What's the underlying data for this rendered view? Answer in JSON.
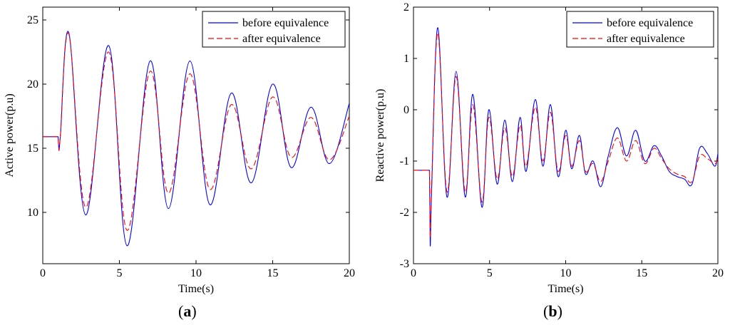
{
  "chart_data": [
    {
      "id": "a",
      "type": "line",
      "caption": "a",
      "xlabel": "Time(s)",
      "ylabel": "Active power(p.u)",
      "xlim": [
        0,
        20
      ],
      "ylim": [
        6,
        26
      ],
      "xticks": [
        0,
        5,
        10,
        15,
        20
      ],
      "yticks": [
        10,
        15,
        20,
        25
      ],
      "grid": false,
      "legend_position": "top-right",
      "series": [
        {
          "name": "before equivalence",
          "color": "#0000ff",
          "dash": "solid",
          "x": [
            0,
            1.0,
            1.0,
            1.05,
            1.15,
            1.7,
            2.8,
            4.3,
            5.5,
            7.0,
            8.2,
            9.6,
            10.9,
            12.3,
            13.6,
            15.0,
            16.2,
            17.5,
            18.7,
            20.0
          ],
          "y": [
            15.9,
            15.9,
            15.9,
            14.9,
            16.0,
            24.0,
            9.8,
            23.0,
            7.4,
            21.8,
            10.3,
            21.8,
            10.6,
            19.3,
            12.3,
            20.0,
            13.5,
            18.2,
            13.8,
            18.5
          ]
        },
        {
          "name": "after equivalence",
          "color": "#ff0000",
          "dash": "8,4",
          "x": [
            0,
            1.0,
            1.0,
            1.05,
            1.15,
            1.7,
            2.8,
            4.3,
            5.5,
            7.0,
            8.2,
            9.6,
            10.9,
            12.3,
            13.6,
            15.0,
            16.2,
            17.5,
            18.7,
            20.0
          ],
          "y": [
            15.9,
            15.9,
            15.9,
            14.9,
            16.0,
            23.9,
            10.4,
            22.5,
            8.6,
            21.0,
            11.5,
            20.8,
            11.8,
            18.4,
            13.4,
            19.0,
            14.3,
            17.4,
            14.1,
            17.5
          ]
        }
      ]
    },
    {
      "id": "b",
      "type": "line",
      "caption": "b",
      "xlabel": "Time(s)",
      "ylabel": "Reactive power(p.u)",
      "xlim": [
        0,
        20
      ],
      "ylim": [
        -3,
        2
      ],
      "xticks": [
        0,
        5,
        10,
        15,
        20
      ],
      "yticks": [
        -3,
        -2,
        -1,
        0,
        1,
        2
      ],
      "grid": false,
      "legend_position": "top-right",
      "series": [
        {
          "name": "before equivalence",
          "color": "#0000ff",
          "dash": "solid",
          "x": [
            0,
            1.0,
            1.05,
            1.1,
            1.2,
            1.6,
            2.2,
            2.8,
            3.4,
            3.9,
            4.5,
            4.95,
            5.5,
            6.0,
            6.5,
            7.0,
            7.4,
            8.0,
            8.5,
            9.0,
            9.5,
            10.0,
            10.4,
            10.9,
            11.3,
            11.8,
            12.3,
            12.8,
            13.4,
            14.0,
            14.6,
            15.2,
            15.8,
            16.3,
            16.8,
            17.3,
            17.8,
            18.3,
            18.8,
            19.3,
            19.8,
            20.0
          ],
          "y": [
            -1.18,
            -1.18,
            -1.18,
            -2.65,
            -1.5,
            1.6,
            -1.7,
            0.75,
            -1.7,
            0.3,
            -1.9,
            0.0,
            -1.45,
            -0.2,
            -1.4,
            -0.15,
            -1.2,
            0.2,
            -1.1,
            0.1,
            -1.3,
            -0.4,
            -1.15,
            -0.5,
            -1.25,
            -1.0,
            -1.5,
            -0.9,
            -0.35,
            -0.9,
            -0.4,
            -1.0,
            -0.7,
            -0.9,
            -1.2,
            -1.3,
            -1.35,
            -1.45,
            -0.75,
            -0.85,
            -1.1,
            -0.85
          ]
        },
        {
          "name": "after equivalence",
          "color": "#ff0000",
          "dash": "8,4",
          "x": [
            0,
            1.0,
            1.05,
            1.1,
            1.2,
            1.6,
            2.2,
            2.8,
            3.4,
            3.9,
            4.5,
            4.95,
            5.5,
            6.0,
            6.5,
            7.0,
            7.4,
            8.0,
            8.5,
            9.0,
            9.5,
            10.0,
            10.4,
            10.9,
            11.3,
            11.8,
            12.3,
            12.8,
            13.4,
            14.0,
            14.6,
            15.2,
            15.8,
            16.3,
            16.8,
            17.3,
            17.8,
            18.3,
            18.8,
            19.3,
            19.8,
            20.0
          ],
          "y": [
            -1.18,
            -1.18,
            -1.18,
            -2.5,
            -1.4,
            1.5,
            -1.6,
            0.65,
            -1.6,
            0.1,
            -1.8,
            -0.15,
            -1.35,
            -0.35,
            -1.3,
            -0.3,
            -1.1,
            0.05,
            -1.0,
            -0.05,
            -1.2,
            -0.5,
            -1.1,
            -0.6,
            -1.2,
            -1.05,
            -1.4,
            -1.0,
            -0.55,
            -1.0,
            -0.6,
            -1.05,
            -0.75,
            -0.95,
            -1.15,
            -1.25,
            -1.3,
            -1.4,
            -0.9,
            -0.95,
            -1.05,
            -0.95
          ]
        }
      ]
    }
  ]
}
